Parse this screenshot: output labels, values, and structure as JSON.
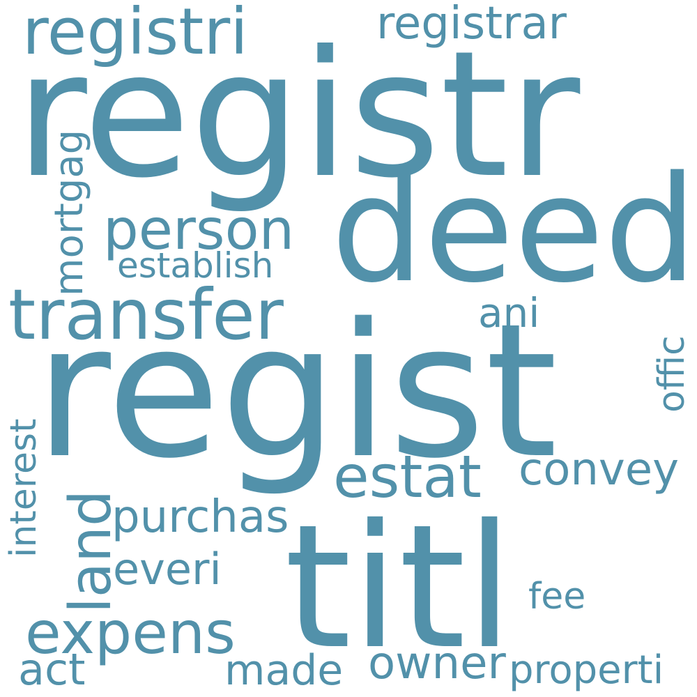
{
  "word_color": "#5291aa",
  "background": "#ffffff",
  "words": {
    "regist": "regist",
    "registr": "registr",
    "titl": "titl",
    "deed": "deed",
    "transfer": "transfer",
    "registri": "registri",
    "person": "person",
    "estat": "estat",
    "expens": "expens",
    "land": "land",
    "purchas": "purchas",
    "convey": "convey",
    "owner": "owner",
    "establish": "establish",
    "registrar": "registrar",
    "everi": "everi",
    "interest": "interest",
    "mortgag": "mortgag",
    "made": "made",
    "properti": "properti",
    "act": "act",
    "ani": "ani",
    "offic": "offic",
    "fee": "fee"
  }
}
